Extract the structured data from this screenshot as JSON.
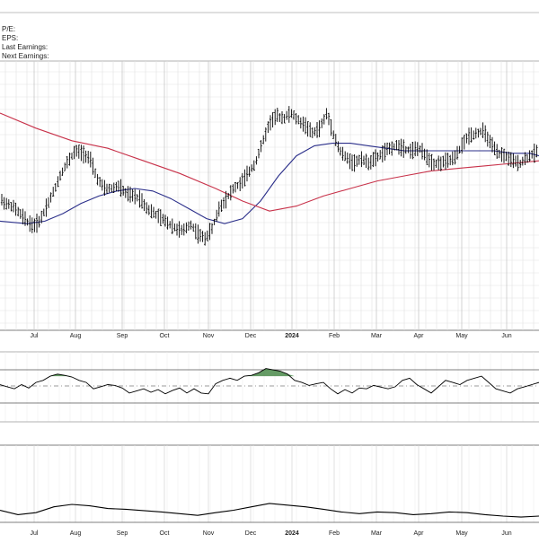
{
  "info_labels": {
    "pe": "P/E:",
    "eps": "EPS:",
    "last_earnings": "Last Earnings:",
    "next_earnings": "Next Earnings:"
  },
  "chart_data": [
    {
      "type": "ohlc",
      "panel": "price",
      "x_month_labels": [
        "Jul",
        "Aug",
        "Sep",
        "Oct",
        "Nov",
        "Dec",
        "2024",
        "Feb",
        "Mar",
        "Apr",
        "May",
        "Jun"
      ],
      "y_range": [
        0,
        100
      ],
      "grid": true,
      "series": [
        {
          "kind": "ohlc",
          "color": "#000000",
          "x": [
            0,
            6,
            14,
            22,
            30,
            37,
            44,
            52,
            60,
            68,
            76,
            84,
            92,
            100,
            108,
            116,
            124,
            132,
            140,
            148,
            156,
            164,
            172,
            180,
            188,
            196,
            204,
            212,
            220,
            228,
            236,
            244,
            252,
            260,
            268,
            276,
            284,
            292,
            300,
            308,
            316,
            324,
            332,
            340,
            348,
            356,
            364,
            370,
            378,
            386,
            394,
            402,
            410,
            418,
            426,
            434,
            442,
            450,
            458,
            466,
            474,
            482,
            490,
            498,
            506,
            514,
            522,
            530,
            538,
            546,
            554,
            562,
            570,
            578,
            586,
            594,
            600
          ],
          "y": [
            46,
            44,
            43,
            40,
            37,
            35,
            37,
            43,
            49,
            56,
            61,
            65,
            64,
            62,
            54,
            50,
            50,
            51,
            48,
            47,
            46,
            42,
            40,
            38,
            36,
            34,
            33,
            36,
            32,
            30,
            34,
            42,
            46,
            50,
            52,
            56,
            60,
            68,
            76,
            79,
            78,
            80,
            77,
            75,
            72,
            74,
            80,
            73,
            65,
            62,
            60,
            62,
            60,
            62,
            64,
            66,
            67,
            66,
            65,
            66,
            63,
            60,
            60,
            61,
            62,
            67,
            71,
            72,
            73,
            68,
            64,
            63,
            61,
            60,
            62,
            64,
            65
          ]
        },
        {
          "kind": "line",
          "color": "#2b2f8a",
          "x": [
            0,
            30,
            50,
            70,
            90,
            110,
            130,
            150,
            170,
            190,
            210,
            230,
            250,
            270,
            290,
            310,
            330,
            350,
            370,
            390,
            410,
            430,
            450,
            470,
            490,
            510,
            530,
            550,
            570,
            590,
            600
          ],
          "y": [
            37,
            36,
            37,
            40,
            44,
            47,
            49,
            50,
            49,
            46,
            42,
            38,
            36,
            38,
            45,
            55,
            63,
            67,
            68,
            68,
            67,
            66,
            65,
            65,
            65,
            65,
            65,
            65,
            64,
            64,
            63
          ]
        },
        {
          "kind": "line",
          "color": "#c8324a",
          "x": [
            0,
            40,
            80,
            120,
            160,
            200,
            240,
            270,
            300,
            330,
            360,
            390,
            420,
            450,
            480,
            510,
            540,
            570,
            600
          ],
          "y": [
            80,
            74,
            69,
            66,
            61,
            56,
            50,
            45,
            41,
            43,
            47,
            50,
            53,
            55,
            57,
            58,
            59,
            60,
            61
          ]
        }
      ]
    },
    {
      "type": "line",
      "panel": "oscillator",
      "y_range": [
        0,
        100
      ],
      "series": [
        {
          "color": "#000000",
          "x": [
            0,
            8,
            16,
            24,
            32,
            40,
            48,
            56,
            64,
            72,
            80,
            88,
            96,
            104,
            112,
            120,
            128,
            136,
            144,
            152,
            160,
            168,
            176,
            184,
            192,
            200,
            208,
            216,
            224,
            232,
            240,
            248,
            256,
            264,
            272,
            280,
            288,
            296,
            304,
            312,
            320,
            328,
            336,
            344,
            352,
            360,
            368,
            376,
            384,
            392,
            400,
            408,
            416,
            424,
            432,
            440,
            448,
            456,
            464,
            472,
            480,
            488,
            496,
            504,
            512,
            520,
            528,
            536,
            544,
            552,
            560,
            568,
            576,
            584,
            592,
            600
          ],
          "y": [
            50,
            45,
            40,
            50,
            42,
            55,
            60,
            70,
            75,
            72,
            68,
            60,
            55,
            40,
            45,
            50,
            48,
            42,
            30,
            35,
            40,
            32,
            38,
            28,
            36,
            42,
            30,
            40,
            30,
            28,
            52,
            60,
            65,
            60,
            70,
            72,
            78,
            88,
            85,
            82,
            75,
            60,
            55,
            48,
            52,
            55,
            40,
            28,
            38,
            30,
            42,
            40,
            48,
            44,
            40,
            45,
            60,
            65,
            50,
            40,
            30,
            45,
            60,
            55,
            50,
            60,
            65,
            70,
            55,
            40,
            35,
            30,
            40,
            45,
            50,
            55
          ]
        }
      ],
      "reference_levels": [
        70,
        50,
        30
      ]
    },
    {
      "type": "line",
      "panel": "lower",
      "x_month_labels": [
        "Jul",
        "Aug",
        "Sep",
        "Oct",
        "Nov",
        "Dec",
        "2024",
        "Feb",
        "Mar",
        "Apr",
        "May",
        "Jun"
      ],
      "y_range": [
        0,
        100
      ],
      "series": [
        {
          "color": "#000000",
          "x": [
            0,
            20,
            40,
            60,
            80,
            100,
            120,
            140,
            160,
            180,
            200,
            220,
            240,
            260,
            280,
            300,
            320,
            340,
            360,
            380,
            400,
            420,
            440,
            460,
            480,
            500,
            520,
            540,
            560,
            580,
            600
          ],
          "y": [
            25,
            12,
            18,
            35,
            42,
            38,
            30,
            28,
            24,
            20,
            15,
            10,
            18,
            25,
            35,
            45,
            40,
            35,
            28,
            20,
            15,
            20,
            18,
            12,
            15,
            20,
            18,
            12,
            8,
            5,
            8
          ]
        }
      ]
    }
  ]
}
